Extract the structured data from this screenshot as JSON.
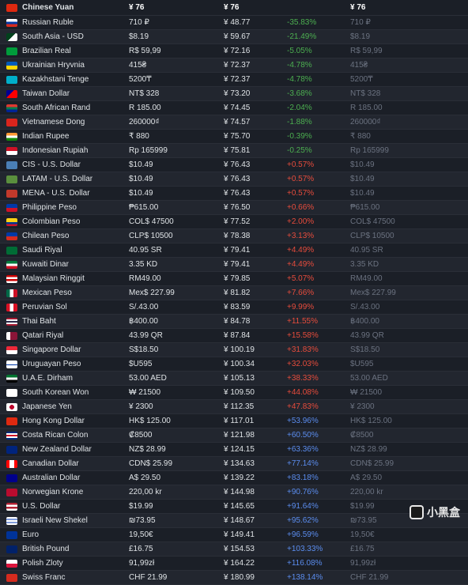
{
  "header": {
    "name": "Chinese Yuan",
    "price": "¥ 76",
    "conv": "¥ 76",
    "pct": "",
    "orig": "¥ 76",
    "flag": "#de2910"
  },
  "rows": [
    {
      "name": "Russian Ruble",
      "price": "710 ₽",
      "conv": "¥ 48.77",
      "pct": "-35.83%",
      "pcls": "neg",
      "orig": "710 ₽",
      "flag": "linear-gradient(#fff 33%,#0039a6 33% 66%,#d52b1e 66%)"
    },
    {
      "name": "South Asia - USD",
      "price": "$8.19",
      "conv": "¥ 59.67",
      "pct": "-21.49%",
      "pcls": "neg",
      "orig": "$8.19",
      "flag": "linear-gradient(135deg,#01411c 50%,#fff 50%)"
    },
    {
      "name": "Brazilian Real",
      "price": "R$ 59,99",
      "conv": "¥ 72.16",
      "pct": "-5.05%",
      "pcls": "neg",
      "orig": "R$ 59,99",
      "flag": "#009c3b"
    },
    {
      "name": "Ukrainian Hryvnia",
      "price": "415₴",
      "conv": "¥ 72.37",
      "pct": "-4.78%",
      "pcls": "neg",
      "orig": "415₴",
      "flag": "linear-gradient(#005bbb 50%,#ffd500 50%)"
    },
    {
      "name": "Kazakhstani Tenge",
      "price": "5200₸",
      "conv": "¥ 72.37",
      "pct": "-4.78%",
      "pcls": "neg",
      "orig": "5200₸",
      "flag": "#00afca"
    },
    {
      "name": "Taiwan Dollar",
      "price": "NT$ 328",
      "conv": "¥ 73.20",
      "pct": "-3.68%",
      "pcls": "neg",
      "orig": "NT$ 328",
      "flag": "linear-gradient(135deg,#000095 40%,#fe0000 40%)"
    },
    {
      "name": "South African Rand",
      "price": "R 185.00",
      "conv": "¥ 74.45",
      "pct": "-2.04%",
      "pcls": "neg",
      "orig": "R 185.00",
      "flag": "linear-gradient(#de3831 33%,#007a4d 33% 66%,#002395 66%)"
    },
    {
      "name": "Vietnamese Dong",
      "price": "260000₫",
      "conv": "¥ 74.57",
      "pct": "-1.88%",
      "pcls": "neg",
      "orig": "260000₫",
      "flag": "#da251d"
    },
    {
      "name": "Indian Rupee",
      "price": "₹ 880",
      "conv": "¥ 75.70",
      "pct": "-0.39%",
      "pcls": "neg",
      "orig": "₹ 880",
      "flag": "linear-gradient(#ff9933 33%,#fff 33% 66%,#138808 66%)"
    },
    {
      "name": "Indonesian Rupiah",
      "price": "Rp 165999",
      "conv": "¥ 75.81",
      "pct": "-0.25%",
      "pcls": "neg",
      "orig": "Rp 165999",
      "flag": "linear-gradient(#ce1126 50%,#fff 50%)"
    },
    {
      "name": "CIS - U.S. Dollar",
      "price": "$10.49",
      "conv": "¥ 76.43",
      "pct": "+0.57%",
      "pcls": "pos",
      "orig": "$10.49",
      "flag": "#4a7fb5"
    },
    {
      "name": "LATAM - U.S. Dollar",
      "price": "$10.49",
      "conv": "¥ 76.43",
      "pct": "+0.57%",
      "pcls": "pos",
      "orig": "$10.49",
      "flag": "#5a8f3d"
    },
    {
      "name": "MENA - U.S. Dollar",
      "price": "$10.49",
      "conv": "¥ 76.43",
      "pct": "+0.57%",
      "pcls": "pos",
      "orig": "$10.49",
      "flag": "#c1392b"
    },
    {
      "name": "Philippine Peso",
      "price": "₱615.00",
      "conv": "¥ 76.50",
      "pct": "+0.66%",
      "pcls": "pos",
      "orig": "₱615.00",
      "flag": "linear-gradient(#0038a8 50%,#ce1126 50%)"
    },
    {
      "name": "Colombian Peso",
      "price": "COL$ 47500",
      "conv": "¥ 77.52",
      "pct": "+2.00%",
      "pcls": "pos",
      "orig": "COL$ 47500",
      "flag": "linear-gradient(#fcd116 50%,#003893 50% 75%,#ce1126 75%)"
    },
    {
      "name": "Chilean Peso",
      "price": "CLP$ 10500",
      "conv": "¥ 78.38",
      "pct": "+3.13%",
      "pcls": "pos",
      "orig": "CLP$ 10500",
      "flag": "linear-gradient(#0039a6 50%,#d52b1e 50%)"
    },
    {
      "name": "Saudi Riyal",
      "price": "40.95 SR",
      "conv": "¥ 79.41",
      "pct": "+4.49%",
      "pcls": "pos",
      "orig": "40.95 SR",
      "flag": "#006c35"
    },
    {
      "name": "Kuwaiti Dinar",
      "price": "3.35 KD",
      "conv": "¥ 79.41",
      "pct": "+4.49%",
      "pcls": "pos",
      "orig": "3.35 KD",
      "flag": "linear-gradient(#007a3d 33%,#fff 33% 66%,#ce1126 66%)"
    },
    {
      "name": "Malaysian Ringgit",
      "price": "RM49.00",
      "conv": "¥ 79.85",
      "pct": "+5.07%",
      "pcls": "pos",
      "orig": "RM49.00",
      "flag": "linear-gradient(#cc0001 25%,#fff 25% 50%,#cc0001 50% 75%,#fff 75%)"
    },
    {
      "name": "Mexican Peso",
      "price": "Mex$ 227.99",
      "conv": "¥ 81.82",
      "pct": "+7.66%",
      "pcls": "pos",
      "orig": "Mex$ 227.99",
      "flag": "linear-gradient(90deg,#006847 33%,#fff 33% 66%,#ce1126 66%)"
    },
    {
      "name": "Peruvian Sol",
      "price": "S/.43.00",
      "conv": "¥ 83.59",
      "pct": "+9.99%",
      "pcls": "pos",
      "orig": "S/.43.00",
      "flag": "linear-gradient(90deg,#d91023 33%,#fff 33% 66%,#d91023 66%)"
    },
    {
      "name": "Thai Baht",
      "price": "฿400.00",
      "conv": "¥ 84.78",
      "pct": "+11.55%",
      "pcls": "pos",
      "orig": "฿400.00",
      "flag": "linear-gradient(#a51931 20%,#f4f5f8 20% 40%,#2d2a4a 40% 60%,#f4f5f8 60% 80%,#a51931 80%)"
    },
    {
      "name": "Qatari Riyal",
      "price": "43.99 QR",
      "conv": "¥ 87.84",
      "pct": "+15.58%",
      "pcls": "pos",
      "orig": "43.99 QR",
      "flag": "linear-gradient(90deg,#fff 35%,#8a1538 35%)"
    },
    {
      "name": "Singapore Dollar",
      "price": "S$18.50",
      "conv": "¥ 100.19",
      "pct": "+31.83%",
      "pcls": "pos",
      "orig": "S$18.50",
      "flag": "linear-gradient(#ed2939 50%,#fff 50%)"
    },
    {
      "name": "Uruguayan Peso",
      "price": "$U595",
      "conv": "¥ 100.34",
      "pct": "+32.03%",
      "pcls": "pos",
      "orig": "$U595",
      "flag": "linear-gradient(#fff 50%,#0038a8 50% 60%,#fff 60%)"
    },
    {
      "name": "U.A.E. Dirham",
      "price": "53.00 AED",
      "conv": "¥ 105.13",
      "pct": "+38.33%",
      "pcls": "pos",
      "orig": "53.00 AED",
      "flag": "linear-gradient(#00732f 33%,#fff 33% 66%,#000 66%)"
    },
    {
      "name": "South Korean Won",
      "price": "₩ 21500",
      "conv": "¥ 109.50",
      "pct": "+44.08%",
      "pcls": "pos",
      "orig": "₩ 21500",
      "flag": "#fff"
    },
    {
      "name": "Japanese Yen",
      "price": "¥ 2300",
      "conv": "¥ 112.35",
      "pct": "+47.83%",
      "pcls": "pos",
      "orig": "¥ 2300",
      "flag": "radial-gradient(circle,#bc002d 35%,#fff 35%)"
    },
    {
      "name": "Hong Kong Dollar",
      "price": "HK$ 125.00",
      "conv": "¥ 117.01",
      "pct": "+53.96%",
      "pcls": "blue",
      "orig": "HK$ 125.00",
      "flag": "#de2910"
    },
    {
      "name": "Costa Rican Colon",
      "price": "₡8500",
      "conv": "¥ 121.98",
      "pct": "+60.50%",
      "pcls": "blue",
      "orig": "₡8500",
      "flag": "linear-gradient(#002b7f 20%,#fff 20% 40%,#ce1126 40% 60%,#fff 60% 80%,#002b7f 80%)"
    },
    {
      "name": "New Zealand Dollar",
      "price": "NZ$ 28.99",
      "conv": "¥ 124.15",
      "pct": "+63.36%",
      "pcls": "blue",
      "orig": "NZ$ 28.99",
      "flag": "#00247d"
    },
    {
      "name": "Canadian Dollar",
      "price": "CDN$ 25.99",
      "conv": "¥ 134.63",
      "pct": "+77.14%",
      "pcls": "blue",
      "orig": "CDN$ 25.99",
      "flag": "linear-gradient(90deg,#ff0000 30%,#fff 30% 70%,#ff0000 70%)"
    },
    {
      "name": "Australian Dollar",
      "price": "A$ 29.50",
      "conv": "¥ 139.22",
      "pct": "+83.18%",
      "pcls": "blue",
      "orig": "A$ 29.50",
      "flag": "#00008b"
    },
    {
      "name": "Norwegian Krone",
      "price": "220,00 kr",
      "conv": "¥ 144.98",
      "pct": "+90.76%",
      "pcls": "blue",
      "orig": "220,00 kr",
      "flag": "#ba0c2f"
    },
    {
      "name": "U.S. Dollar",
      "price": "$19.99",
      "conv": "¥ 145.65",
      "pct": "+91.64%",
      "pcls": "blue",
      "orig": "$19.99",
      "flag": "linear-gradient(#b22234 25%,#fff 25% 50%,#b22234 50% 75%,#fff 75%)"
    },
    {
      "name": "Israeli New Shekel",
      "price": "₪73.95",
      "conv": "¥ 148.67",
      "pct": "+95.62%",
      "pcls": "blue",
      "orig": "₪73.95",
      "flag": "linear-gradient(#fff 25%,#0038b8 25% 35%,#fff 35% 65%,#0038b8 65% 75%,#fff 75%)"
    },
    {
      "name": "Euro",
      "price": "19,50€",
      "conv": "¥ 149.41",
      "pct": "+96.59%",
      "pcls": "blue",
      "orig": "19,50€",
      "flag": "#003399"
    },
    {
      "name": "British Pound",
      "price": "£16.75",
      "conv": "¥ 154.53",
      "pct": "+103.33%",
      "pcls": "blue",
      "orig": "£16.75",
      "flag": "#012169"
    },
    {
      "name": "Polish Zloty",
      "price": "91,99zł",
      "conv": "¥ 164.22",
      "pct": "+116.08%",
      "pcls": "blue",
      "orig": "91,99zł",
      "flag": "linear-gradient(#fff 50%,#dc143c 50%)"
    },
    {
      "name": "Swiss Franc",
      "price": "CHF 21.99",
      "conv": "¥ 180.99",
      "pct": "+138.14%",
      "pcls": "blue",
      "orig": "CHF 21.99",
      "flag": "#d52b1e"
    }
  ],
  "watermark": "小黑盒"
}
